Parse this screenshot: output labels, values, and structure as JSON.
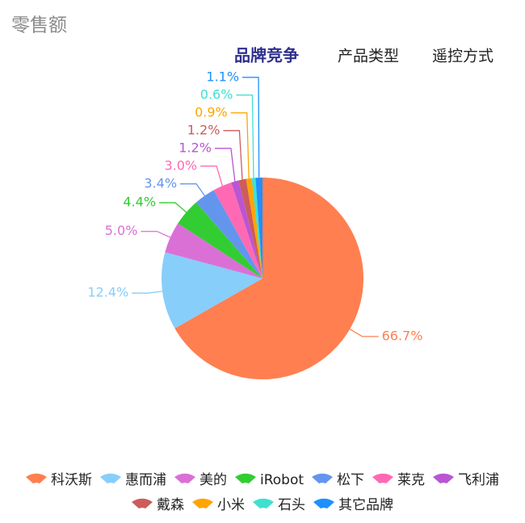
{
  "header": {
    "title": "零售额",
    "tabs": [
      "品牌竞争",
      "产品类型",
      "遥控方式"
    ]
  },
  "chart_data": {
    "type": "pie",
    "categories": [
      "科沃斯",
      "惠而浦",
      "美的",
      "iRobot",
      "松下",
      "莱克",
      "飞利浦",
      "戴森",
      "小米",
      "石头",
      "其它品牌"
    ],
    "values": [
      66.7,
      12.4,
      5.0,
      4.4,
      3.4,
      3.0,
      1.2,
      1.2,
      0.9,
      0.6,
      1.1
    ],
    "value_labels": [
      "66.7%",
      "12.4%",
      "5.0%",
      "4.4%",
      "3.4%",
      "3.0%",
      "1.2%",
      "1.2%",
      "0.9%",
      "0.6%",
      "1.1%"
    ],
    "colors": [
      "#ff7f50",
      "#87cefa",
      "#da70d6",
      "#32cd32",
      "#6495ed",
      "#ff69b4",
      "#ba55d3",
      "#cd5c5c",
      "#ffa500",
      "#40e0d0",
      "#1e90ff"
    ]
  }
}
